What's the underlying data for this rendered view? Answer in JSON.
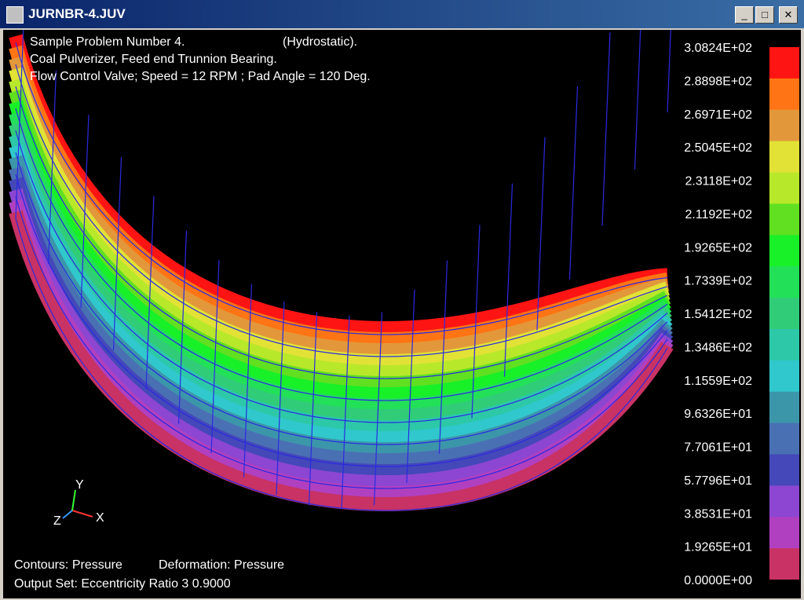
{
  "window": {
    "title": "JURNBR-4.JUV"
  },
  "header": {
    "lines": [
      "Sample Problem Number 4.",
      "(Hydrostatic).",
      "Coal Pulverizer, Feed end Trunnion Bearing.",
      "Flow Control Valve; Speed = 12 RPM ; Pad Angle = 120 Deg."
    ]
  },
  "legend": {
    "labels": [
      "3.0824E+02",
      "2.8898E+02",
      "2.6971E+02",
      "2.5045E+02",
      "2.3118E+02",
      "2.1192E+02",
      "1.9265E+02",
      "1.7339E+02",
      "1.5412E+02",
      "1.3486E+02",
      "1.1559E+02",
      "9.6326E+01",
      "7.7061E+01",
      "5.7796E+01",
      "3.8531E+01",
      "1.9265E+01",
      "0.0000E+00"
    ],
    "colors": [
      "#ff1414",
      "#ff7414",
      "#e2983a",
      "#e2e236",
      "#b8e82a",
      "#60e020",
      "#18f028",
      "#22e058",
      "#30cc78",
      "#2cc8a8",
      "#30c8cc",
      "#3c96aa",
      "#4a70b4",
      "#4448b8",
      "#8c46d2",
      "#b040c0"
    ],
    "bottom_color": "#c83264"
  },
  "footer": {
    "lines": [
      "Contours: Pressure",
      "Deformation: Pressure",
      "Output Set:  Eccentricity Ratio   3    0.9000"
    ]
  },
  "axes": {
    "x": "X",
    "y": "Y",
    "z": "Z"
  }
}
